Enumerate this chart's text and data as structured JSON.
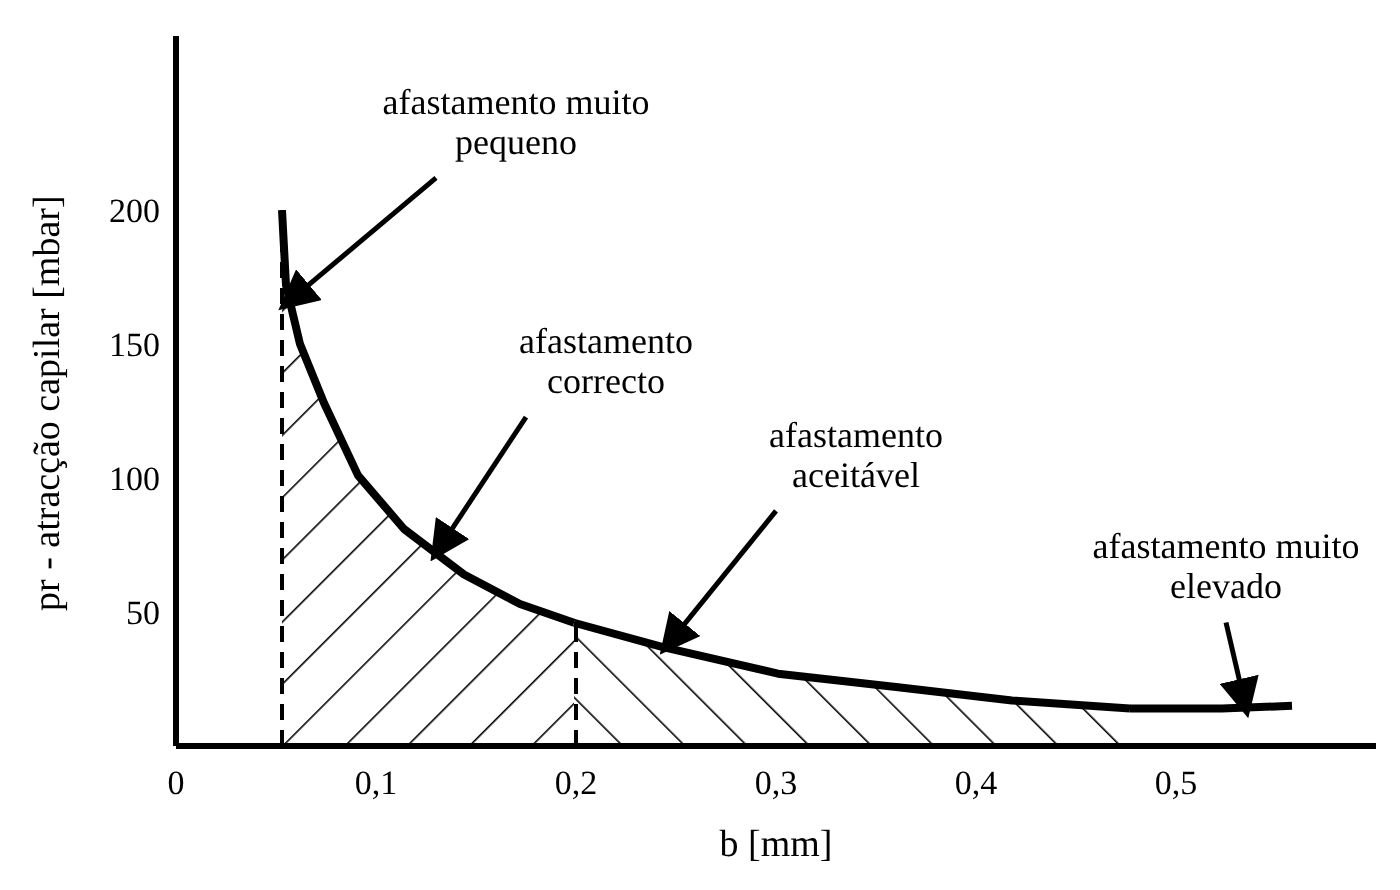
{
  "chart_data": {
    "type": "line",
    "xlabel": "b [mm]",
    "ylabel": "pr - atracção capilar [mbar]",
    "xlim": [
      0,
      0.6
    ],
    "ylim": [
      0,
      265
    ],
    "xticks": [
      0,
      {
        "value": 0.1,
        "label": "0,1"
      },
      {
        "value": 0.2,
        "label": "0,2"
      },
      {
        "value": 0.3,
        "label": "0,3"
      },
      {
        "value": 0.4,
        "label": "0,4"
      },
      {
        "value": 0.5,
        "label": "0,5"
      }
    ],
    "yticks": [
      50,
      100,
      150,
      200
    ],
    "grid": false,
    "marker": "none",
    "series": [
      {
        "type": "area",
        "color": "#000000",
        "x": [
          0.053,
          0.055,
          0.062,
          0.074,
          0.091,
          0.114,
          0.144,
          0.172,
          0.199
        ],
        "values": [
          200,
          172,
          150,
          128,
          101,
          81,
          64,
          53,
          46
        ]
      },
      {
        "type": "area",
        "color": "#000000",
        "x": [
          0.199,
          0.243,
          0.301,
          0.36,
          0.418,
          0.477
        ],
        "values": [
          46,
          37,
          27,
          22,
          17,
          14
        ]
      },
      {
        "color": "#000000",
        "x": [
          0.477,
          0.523,
          0.558
        ],
        "values": [
          14,
          14,
          15
        ]
      }
    ],
    "ref_lines": [
      {
        "axis": "x",
        "value": 0.053,
        "line_style": "dashed",
        "color": "#000000"
      },
      {
        "axis": "x",
        "value": 0.2,
        "line_style": "dashed",
        "color": "#000000"
      }
    ],
    "annotations": [
      {
        "text": "afastamento muito pequeno",
        "x": 0.055,
        "y": 165
      },
      {
        "text": "afastamento correcto",
        "x": 0.13,
        "y": 72
      },
      {
        "text": "afastamento aceitável",
        "x": 0.245,
        "y": 37
      },
      {
        "text": "afastamento muito elevado",
        "x": 0.535,
        "y": 14
      }
    ]
  }
}
